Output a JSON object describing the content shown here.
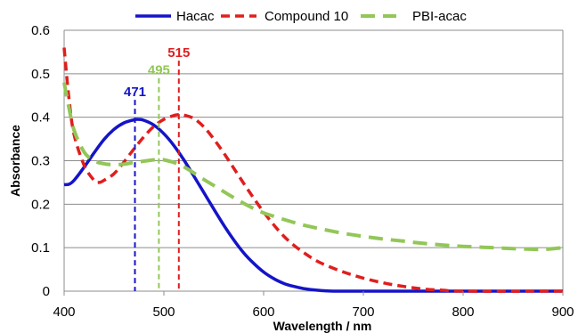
{
  "chart_data": {
    "type": "line",
    "title": "",
    "xlabel": "Wavelength / nm",
    "ylabel": "Absorbance",
    "xlim": [
      400,
      900
    ],
    "ylim": [
      0,
      0.6
    ],
    "xticks": [
      "400",
      "500",
      "600",
      "700",
      "800",
      "900"
    ],
    "yticks": [
      "0",
      "0.1",
      "0.2",
      "0.3",
      "0.4",
      "0.5",
      "0.6"
    ],
    "grid": "horizontal",
    "legend_position": "top",
    "series": [
      {
        "name": "Hacac",
        "color": "#1414c8",
        "style": "solid",
        "x": [
          400,
          405,
          410,
          420,
          430,
          440,
          450,
          460,
          470,
          475,
          480,
          490,
          500,
          510,
          520,
          530,
          540,
          550,
          560,
          570,
          580,
          590,
          600,
          610,
          620,
          630,
          640,
          650,
          660,
          670,
          680,
          690,
          700,
          720,
          750,
          800,
          850,
          880,
          900
        ],
        "y": [
          0.245,
          0.246,
          0.255,
          0.285,
          0.318,
          0.349,
          0.372,
          0.387,
          0.394,
          0.395,
          0.393,
          0.382,
          0.362,
          0.335,
          0.302,
          0.265,
          0.227,
          0.189,
          0.152,
          0.118,
          0.088,
          0.064,
          0.044,
          0.029,
          0.018,
          0.011,
          0.006,
          0.003,
          0.001,
          0.0,
          0.0,
          0.0,
          0.0,
          0.0,
          0.0,
          0.0,
          0.0,
          0.0,
          0.0
        ]
      },
      {
        "name": "Compound 10",
        "color": "#e01e1e",
        "style": "dashed",
        "x": [
          400,
          405,
          410,
          420,
          430,
          435,
          440,
          450,
          460,
          470,
          480,
          490,
          500,
          510,
          515,
          520,
          530,
          540,
          550,
          560,
          570,
          580,
          590,
          600,
          610,
          620,
          630,
          640,
          650,
          660,
          680,
          700,
          720,
          740,
          760,
          780,
          800,
          900
        ],
        "y": [
          0.56,
          0.44,
          0.36,
          0.29,
          0.255,
          0.25,
          0.255,
          0.27,
          0.297,
          0.327,
          0.355,
          0.379,
          0.395,
          0.404,
          0.406,
          0.405,
          0.397,
          0.378,
          0.35,
          0.318,
          0.283,
          0.248,
          0.214,
          0.182,
          0.153,
          0.127,
          0.106,
          0.089,
          0.074,
          0.062,
          0.044,
          0.03,
          0.019,
          0.011,
          0.005,
          0.002,
          0.0,
          0.0
        ]
      },
      {
        "name": "PBI-acac",
        "color": "#92c757",
        "style": "dashed",
        "x": [
          400,
          405,
          410,
          420,
          430,
          440,
          450,
          460,
          470,
          480,
          490,
          495,
          500,
          510,
          520,
          530,
          540,
          550,
          560,
          570,
          580,
          590,
          600,
          620,
          640,
          660,
          680,
          700,
          720,
          740,
          760,
          780,
          800,
          820,
          840,
          860,
          880,
          900
        ],
        "y": [
          0.48,
          0.42,
          0.37,
          0.32,
          0.3,
          0.293,
          0.291,
          0.292,
          0.296,
          0.299,
          0.302,
          0.303,
          0.302,
          0.296,
          0.286,
          0.272,
          0.257,
          0.243,
          0.229,
          0.215,
          0.202,
          0.19,
          0.18,
          0.165,
          0.152,
          0.142,
          0.133,
          0.126,
          0.12,
          0.115,
          0.11,
          0.106,
          0.103,
          0.101,
          0.099,
          0.097,
          0.096,
          0.1
        ]
      }
    ],
    "annotations": [
      {
        "label": "471",
        "x": 471,
        "y_top": 0.44,
        "color": "#1414c8"
      },
      {
        "label": "495",
        "x": 495,
        "y_top": 0.49,
        "color": "#92c757"
      },
      {
        "label": "515",
        "x": 515,
        "y_top": 0.53,
        "color": "#e01e1e"
      }
    ]
  }
}
